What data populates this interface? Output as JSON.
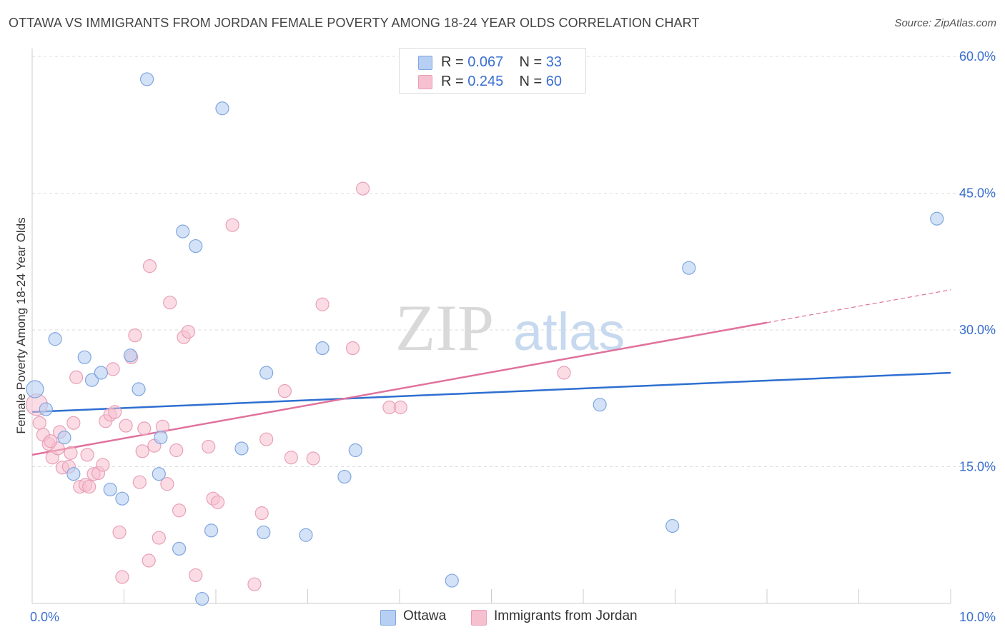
{
  "title": "OTTAWA VS IMMIGRANTS FROM JORDAN FEMALE POVERTY AMONG 18-24 YEAR OLDS CORRELATION CHART",
  "source": "Source: ZipAtlas.com",
  "watermark": {
    "zip": "ZIP",
    "atlas": "atlas"
  },
  "legend": {
    "ottawa": {
      "r_label": "R = ",
      "r_value": "0.067",
      "n_label": "N = ",
      "n_value": "33"
    },
    "jordan": {
      "r_label": "R = ",
      "r_value": "0.245",
      "n_label": "N = ",
      "n_value": "60"
    }
  },
  "bottom_legend": {
    "ottawa": "Ottawa",
    "jordan": "Immigrants from Jordan"
  },
  "colors": {
    "ottawa_fill": "#b7cff2",
    "ottawa_stroke": "#7fa6e0",
    "ottawa_line": "#2e6fd0",
    "jordan_fill": "#f7c0d0",
    "jordan_stroke": "#e8a0b8",
    "jordan_line": "#e0729c",
    "tick_label": "#3a6fd0"
  },
  "chart_data": {
    "type": "scatter",
    "title": "OTTAWA VS IMMIGRANTS FROM JORDAN FEMALE POVERTY AMONG 18-24 YEAR OLDS CORRELATION CHART",
    "xlabel": "",
    "ylabel": "Female Poverty Among 18-24 Year Olds",
    "xlim": [
      0,
      10
    ],
    "ylim": [
      0,
      60
    ],
    "x_tick_labels": [
      {
        "value": 0,
        "label": "0.0%"
      },
      {
        "value": 10,
        "label": "10.0%"
      }
    ],
    "y_tick_labels": [
      {
        "value": 15,
        "label": "15.0%"
      },
      {
        "value": 30,
        "label": "30.0%"
      },
      {
        "value": 45,
        "label": "45.0%"
      },
      {
        "value": 60,
        "label": "60.0%"
      }
    ],
    "grid": "horizontal dashed",
    "legend_position": "top-center",
    "series": [
      {
        "name": "Ottawa",
        "points": [
          [
            0.03,
            23.5
          ],
          [
            0.15,
            21.3
          ],
          [
            0.25,
            29.0
          ],
          [
            0.35,
            18.2
          ],
          [
            0.45,
            14.2
          ],
          [
            0.57,
            27.0
          ],
          [
            0.65,
            24.5
          ],
          [
            0.75,
            25.3
          ],
          [
            0.85,
            12.5
          ],
          [
            0.98,
            11.5
          ],
          [
            1.07,
            27.2
          ],
          [
            1.16,
            23.5
          ],
          [
            1.25,
            57.5
          ],
          [
            1.4,
            18.2
          ],
          [
            1.38,
            14.2
          ],
          [
            1.6,
            6.0
          ],
          [
            1.64,
            40.8
          ],
          [
            1.78,
            39.2
          ],
          [
            1.85,
            0.5
          ],
          [
            1.95,
            8.0
          ],
          [
            2.07,
            54.3
          ],
          [
            2.28,
            17.0
          ],
          [
            2.52,
            7.8
          ],
          [
            2.55,
            25.3
          ],
          [
            2.98,
            7.5
          ],
          [
            3.16,
            28.0
          ],
          [
            3.4,
            13.9
          ],
          [
            3.52,
            16.8
          ],
          [
            4.57,
            2.5
          ],
          [
            6.18,
            21.8
          ],
          [
            6.97,
            8.5
          ],
          [
            7.15,
            36.8
          ],
          [
            9.85,
            42.2
          ]
        ],
        "trend": {
          "x": [
            0,
            10
          ],
          "y": [
            21.0,
            25.3
          ]
        }
      },
      {
        "name": "Immigrants from Jordan",
        "points": [
          [
            0.05,
            21.8
          ],
          [
            0.12,
            18.5
          ],
          [
            0.18,
            17.5
          ],
          [
            0.22,
            16.0
          ],
          [
            0.28,
            17.0
          ],
          [
            0.3,
            18.8
          ],
          [
            0.33,
            14.9
          ],
          [
            0.4,
            15.0
          ],
          [
            0.42,
            16.5
          ],
          [
            0.45,
            19.8
          ],
          [
            0.48,
            24.8
          ],
          [
            0.52,
            12.8
          ],
          [
            0.58,
            13.0
          ],
          [
            0.6,
            16.3
          ],
          [
            0.62,
            12.8
          ],
          [
            0.67,
            14.2
          ],
          [
            0.72,
            14.3
          ],
          [
            0.77,
            15.2
          ],
          [
            0.8,
            20.0
          ],
          [
            0.85,
            20.7
          ],
          [
            0.88,
            25.7
          ],
          [
            0.9,
            21.0
          ],
          [
            0.95,
            7.8
          ],
          [
            0.98,
            2.9
          ],
          [
            1.02,
            19.5
          ],
          [
            1.08,
            27.0
          ],
          [
            1.12,
            29.4
          ],
          [
            1.17,
            13.3
          ],
          [
            1.2,
            16.7
          ],
          [
            1.22,
            19.2
          ],
          [
            1.27,
            4.7
          ],
          [
            1.28,
            37.0
          ],
          [
            1.33,
            17.3
          ],
          [
            1.38,
            7.2
          ],
          [
            1.42,
            19.4
          ],
          [
            1.47,
            13.1
          ],
          [
            1.5,
            33.0
          ],
          [
            1.57,
            16.8
          ],
          [
            1.6,
            10.2
          ],
          [
            1.65,
            29.2
          ],
          [
            1.7,
            29.8
          ],
          [
            1.78,
            3.1
          ],
          [
            1.92,
            17.2
          ],
          [
            1.97,
            11.5
          ],
          [
            2.02,
            11.1
          ],
          [
            2.18,
            41.5
          ],
          [
            2.42,
            2.1
          ],
          [
            2.5,
            9.9
          ],
          [
            2.55,
            18.0
          ],
          [
            2.75,
            23.3
          ],
          [
            2.82,
            16.0
          ],
          [
            3.06,
            15.9
          ],
          [
            3.16,
            32.8
          ],
          [
            3.49,
            28.0
          ],
          [
            3.6,
            45.5
          ],
          [
            3.89,
            21.5
          ],
          [
            4.01,
            21.5
          ],
          [
            5.79,
            25.3
          ],
          [
            0.08,
            19.8
          ],
          [
            0.2,
            17.8
          ]
        ],
        "trend": {
          "x": [
            0,
            8.0
          ],
          "y": [
            16.3,
            30.8
          ]
        },
        "trend_dashed": {
          "x": [
            8.0,
            10
          ],
          "y": [
            30.8,
            34.4
          ]
        }
      }
    ]
  }
}
